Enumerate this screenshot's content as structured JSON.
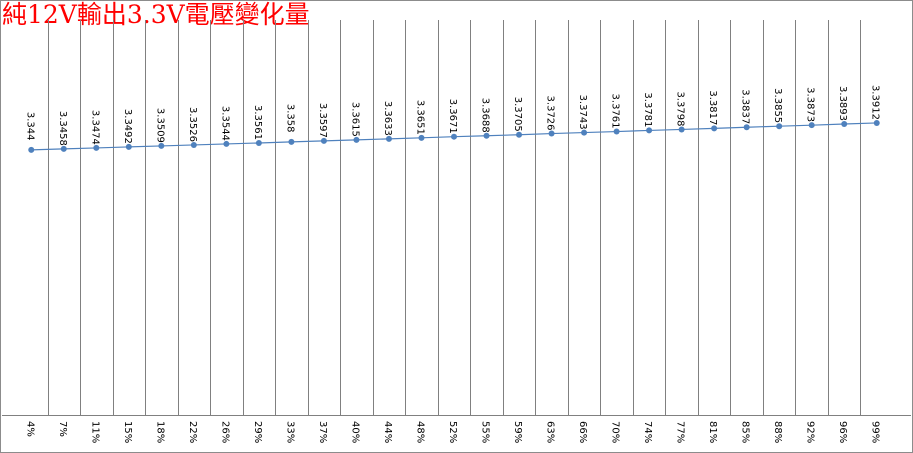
{
  "chart_data": {
    "type": "line",
    "title": "純12V輸出3.3V電壓變化量",
    "xlabel": "",
    "ylabel": "",
    "categories": [
      "4%",
      "7%",
      "11%",
      "15%",
      "18%",
      "22%",
      "26%",
      "29%",
      "33%",
      "37%",
      "40%",
      "44%",
      "48%",
      "52%",
      "55%",
      "59%",
      "63%",
      "66%",
      "70%",
      "74%",
      "77%",
      "81%",
      "85%",
      "88%",
      "92%",
      "96%",
      "99%"
    ],
    "series": [
      {
        "name": "",
        "values": [
          3.344,
          3.3458,
          3.3474,
          3.3492,
          3.3509,
          3.3526,
          3.3544,
          3.3561,
          3.358,
          3.3597,
          3.3615,
          3.3633,
          3.3651,
          3.3671,
          3.3688,
          3.3705,
          3.3726,
          3.3743,
          3.3761,
          3.3781,
          3.3798,
          3.3817,
          3.3837,
          3.3855,
          3.3873,
          3.3893,
          3.3912
        ],
        "labels": [
          "3.344",
          "3.3458",
          "3.3474",
          "3.3492",
          "3.3509",
          "3.3526",
          "3.3544",
          "3.3561",
          "3.358",
          "3.3597",
          "3.3615",
          "3.3633",
          "3.3651",
          "3.3671",
          "3.3688",
          "3.3705",
          "3.3726",
          "3.3743",
          "3.3761",
          "3.3781",
          "3.3798",
          "3.3817",
          "3.3837",
          "3.3855",
          "3.3873",
          "3.3893",
          "3.3912"
        ],
        "color": "#4f81bd"
      }
    ],
    "ylim": [
      3.2,
      3.47
    ],
    "grid": "vertical",
    "legend": "none"
  }
}
